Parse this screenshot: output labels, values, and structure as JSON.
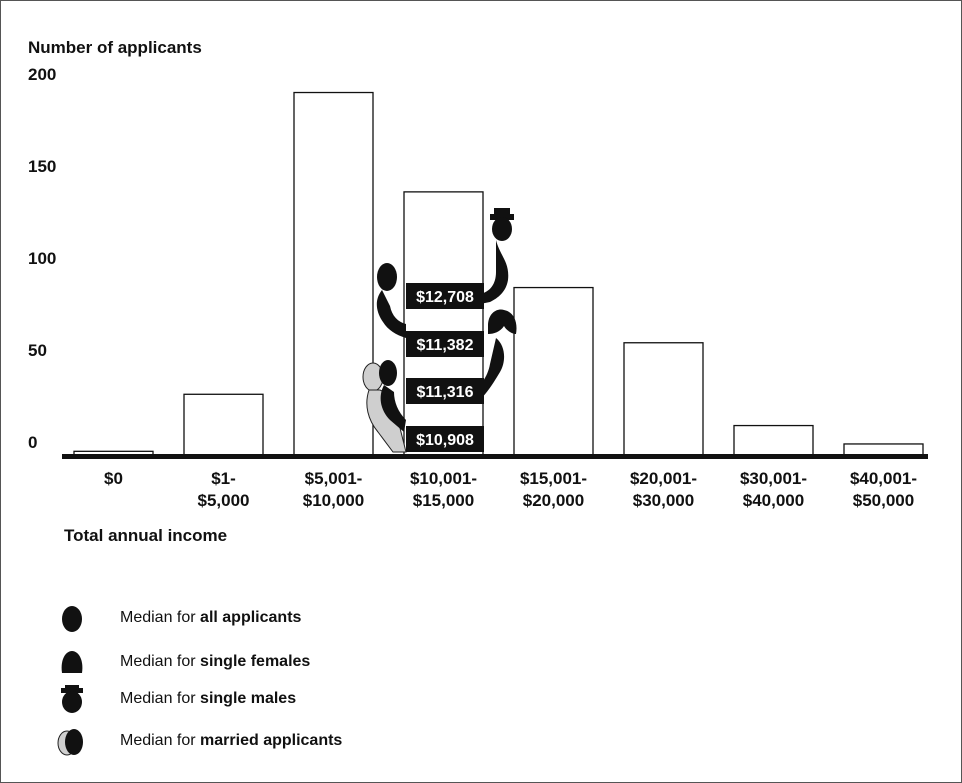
{
  "chart_data": {
    "type": "bar",
    "ylabel": "Number of applicants",
    "xlabel": "Total annual income",
    "ylim": [
      0,
      200
    ],
    "yticks": [
      0,
      50,
      100,
      150,
      200
    ],
    "categories": [
      [
        "$0"
      ],
      [
        "$1-",
        "$5,000"
      ],
      [
        "$5,001-",
        "$10,000"
      ],
      [
        "$10,001-",
        "$15,000"
      ],
      [
        "$15,001-",
        "$20,000"
      ],
      [
        "$20,001-",
        "$30,000"
      ],
      [
        "$30,001-",
        "$40,000"
      ],
      [
        "$40,001-",
        "$50,000"
      ]
    ],
    "values": [
      2,
      33,
      197,
      143,
      91,
      61,
      16,
      6
    ],
    "medians": [
      {
        "group": "single males",
        "icon": "single-male-icon",
        "label": "$12,708",
        "value": 12708
      },
      {
        "group": "all applicants",
        "icon": "all-applicants-icon",
        "label": "$11,382",
        "value": 11382
      },
      {
        "group": "single females",
        "icon": "single-female-icon",
        "label": "$11,316",
        "value": 11316
      },
      {
        "group": "married applicants",
        "icon": "married-applicants-icon",
        "label": "$10,908",
        "value": 10908
      }
    ],
    "grid": false,
    "legend": "bottom-left"
  },
  "legend": {
    "items": [
      {
        "icon": "all-applicants-icon",
        "prefix": "Median for ",
        "bold": "all applicants"
      },
      {
        "icon": "single-female-icon",
        "prefix": "Median for ",
        "bold": "single females"
      },
      {
        "icon": "single-male-icon",
        "prefix": "Median for ",
        "bold": "single males"
      },
      {
        "icon": "married-applicants-icon",
        "prefix": "Median for ",
        "bold": "married applicants"
      }
    ]
  }
}
